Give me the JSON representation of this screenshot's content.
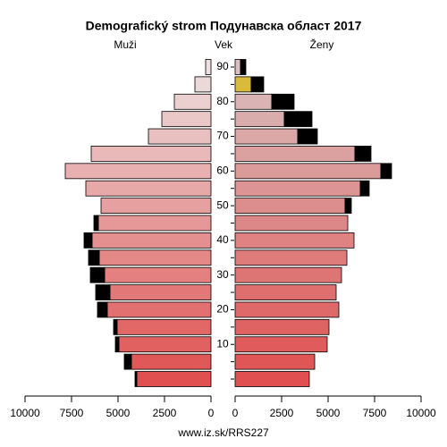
{
  "chart_data": {
    "type": "pyramid",
    "title": "Demografický strom Подунавска област 2017",
    "left_label": "Muži",
    "center_label": "Vek",
    "right_label": "Ženy",
    "source": "www.iz.sk/RRS227",
    "categories": [
      null,
      null,
      "10",
      null,
      "20",
      null,
      "30",
      null,
      "40",
      null,
      "50",
      null,
      "60",
      null,
      "70",
      null,
      "80",
      null,
      "90"
    ],
    "xlim": [
      0,
      10000
    ],
    "xticks": [
      0,
      2500,
      5000,
      7500,
      10000
    ],
    "excess_color": "#000000",
    "series": [
      {
        "name": "Muži",
        "side": "left",
        "values": [
          4087,
          4663,
          5144,
          5240,
          6106,
          6202,
          6490,
          6587,
          6827,
          6298,
          5913,
          6731,
          7837,
          6442,
          3365,
          2644,
          1971,
          865,
          288
        ],
        "colors": [
          "#e05050",
          "#e15858",
          "#e16060",
          "#e26868",
          "#e37070",
          "#e37878",
          "#e48080",
          "#e58888",
          "#e59090",
          "#e69898",
          "#e7a0a0",
          "#e7a8a8",
          "#e8b0b0",
          "#e9b8b8",
          "#e9c0c0",
          "#eac8c8",
          "#ebd0d0",
          "#ebd8d8",
          "#ece0e0"
        ]
      },
      {
        "name": "Ženy",
        "side": "right",
        "values": [
          3990,
          4279,
          4952,
          5048,
          5577,
          5433,
          5721,
          6010,
          6394,
          6058,
          6250,
          7212,
          8413,
          7308,
          4423,
          4135,
          3173,
          1538,
          577
        ],
        "colors": [
          "#e05050",
          "#e05656",
          "#e05c5c",
          "#df6363",
          "#df6969",
          "#df6f6f",
          "#de7575",
          "#de7c7c",
          "#de8282",
          "#dc8888",
          "#dc8e8e",
          "#dc9494",
          "#db9b9b",
          "#dba1a1",
          "#dba7a7",
          "#daadad",
          "#dab4b4",
          "#daba3a",
          "#d8c0c0"
        ]
      }
    ]
  }
}
